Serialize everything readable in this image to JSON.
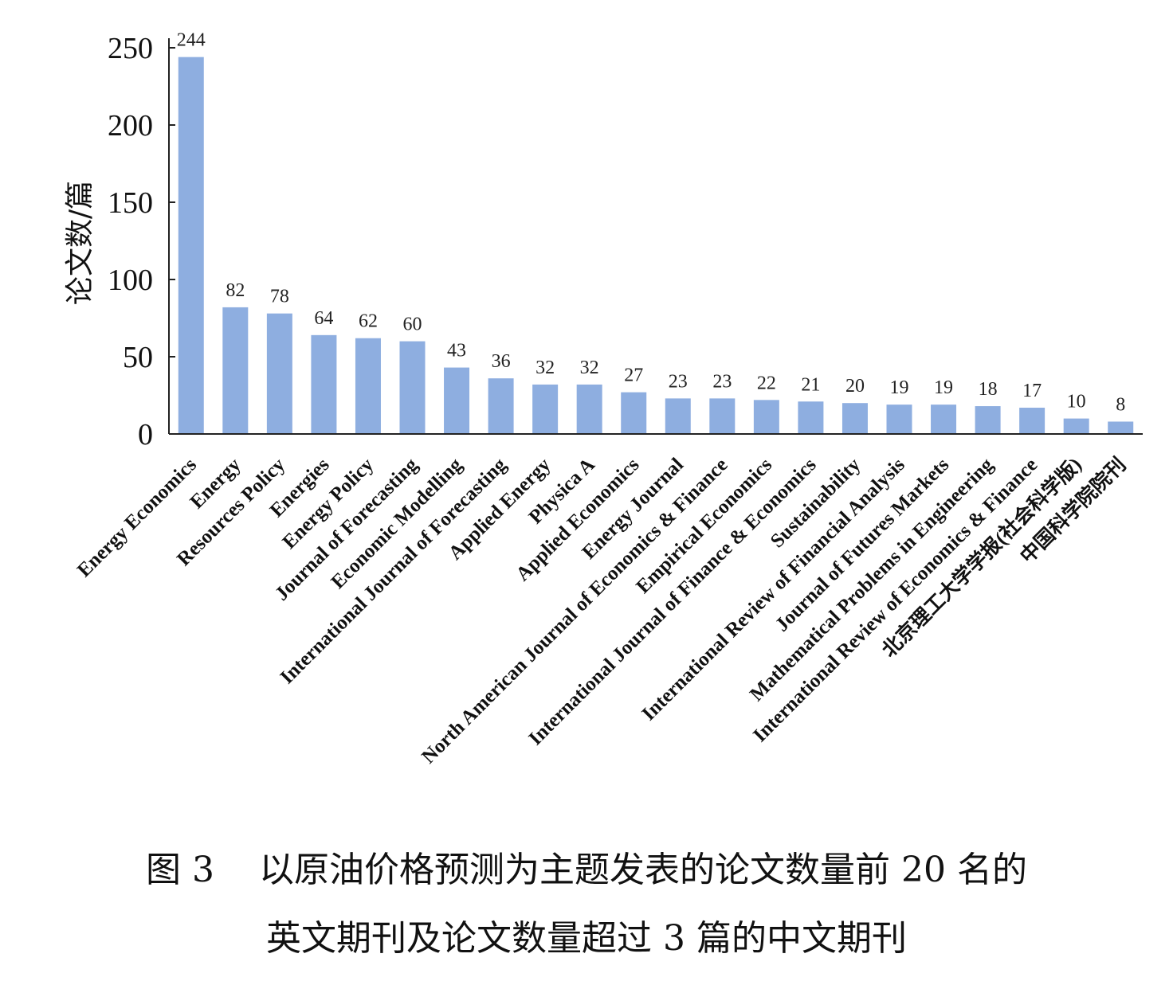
{
  "chart_data": {
    "type": "bar",
    "ylabel": "论文数/篇",
    "ylim": [
      0,
      250
    ],
    "yticks": [
      0,
      50,
      100,
      150,
      200,
      250
    ],
    "bar_color": "#8eaee0",
    "grid": false,
    "categories": [
      "Energy Economics",
      "Energy",
      "Resources Policy",
      "Energies",
      "Energy Policy",
      "Journal of Forecasting",
      "Economic Modelling",
      "International Journal of Forecasting",
      "Applied Energy",
      "Physica A",
      "Applied Economics",
      "Energy Journal",
      "North American Journal of Economics & Finance",
      "Empirical Economics",
      "International Journal of Finance & Economics",
      "Sustainability",
      "International Review of Financial Analysis",
      "Journal of Futures Markets",
      "Mathematical Problems in Engineering",
      "International Review of Economics & Finance",
      "北京理工大学学报(社会科学版)",
      "中国科学院院刊"
    ],
    "values": [
      244,
      82,
      78,
      64,
      62,
      60,
      43,
      36,
      32,
      32,
      27,
      23,
      23,
      22,
      21,
      20,
      19,
      19,
      18,
      17,
      10,
      8
    ]
  },
  "caption": {
    "line1_prefix": "图 3",
    "line1_text": "以原油价格预测为主题发表的论文数量前 20 名的",
    "line2_text": "英文期刊及论文数量超过 3 篇的中文期刊"
  }
}
